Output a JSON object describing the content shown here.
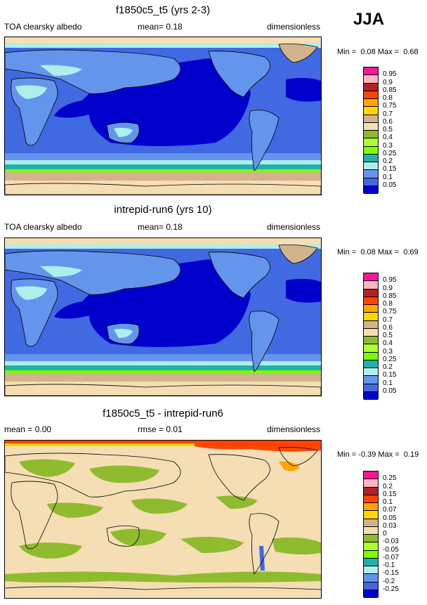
{
  "season": "JJA",
  "panels": [
    {
      "title": "f1850c5_t5 (yrs 2-3)",
      "left_label": "TOA clearsky albedo",
      "center_label": "mean=  0.18",
      "right_label": "dimensionless",
      "min_label": "Min =",
      "min_value": "0.08",
      "max_label": "Max =",
      "max_value": "0.68",
      "colors": [
        "#ff1493",
        "#ffb6c1",
        "#b22222",
        "#ff4500",
        "#ffa500",
        "#ffd700",
        "#d2b48c",
        "#f5deb3",
        "#8fbc2f",
        "#adff2f",
        "#7cfc00",
        "#20b2aa",
        "#afeeee",
        "#6495ed",
        "#4169e1",
        "#0000cd",
        "#9370db"
      ],
      "ticks": [
        "0.95",
        "0.9",
        "0.85",
        "0.8",
        "0.75",
        "0.7",
        "0.6",
        "0.5",
        "0.4",
        "0.3",
        "0.25",
        "0.2",
        "0.15",
        "0.1",
        "0.05"
      ]
    },
    {
      "title": "intrepid-run6 (yrs 10)",
      "left_label": "TOA clearsky albedo",
      "center_label": "mean=  0.18",
      "right_label": "dimensionless",
      "min_label": "Min =",
      "min_value": "0.08",
      "max_label": "Max =",
      "max_value": "0.69",
      "colors": [
        "#ff1493",
        "#ffb6c1",
        "#b22222",
        "#ff4500",
        "#ffa500",
        "#ffd700",
        "#d2b48c",
        "#f5deb3",
        "#8fbc2f",
        "#adff2f",
        "#7cfc00",
        "#20b2aa",
        "#afeeee",
        "#6495ed",
        "#4169e1",
        "#0000cd",
        "#9370db"
      ],
      "ticks": [
        "0.95",
        "0.9",
        "0.85",
        "0.8",
        "0.75",
        "0.7",
        "0.6",
        "0.5",
        "0.4",
        "0.3",
        "0.25",
        "0.2",
        "0.15",
        "0.1",
        "0.05"
      ]
    },
    {
      "title": "f1850c5_t5 - intrepid-run6",
      "left_label": "mean =  0.00",
      "center_label": "rmse =  0.01",
      "right_label": "dimensionless",
      "min_label": "Min =",
      "min_value": "-0.39",
      "max_label": "Max =",
      "max_value": "0.19",
      "colors": [
        "#ff1493",
        "#ffb6c1",
        "#b22222",
        "#ff4500",
        "#ffa500",
        "#ffd700",
        "#d2b48c",
        "#f5deb3",
        "#8fbc2f",
        "#adff2f",
        "#7cfc00",
        "#20b2aa",
        "#afeeee",
        "#6495ed",
        "#4169e1",
        "#0000cd",
        "#9370db"
      ],
      "ticks": [
        "0.25",
        "0.2",
        "0.15",
        "0.1",
        "0.07",
        "0.05",
        "0.03",
        "0",
        "-0.03",
        "-0.05",
        "-0.07",
        "-0.1",
        "-0.15",
        "-0.2",
        "-0.25"
      ]
    }
  ]
}
